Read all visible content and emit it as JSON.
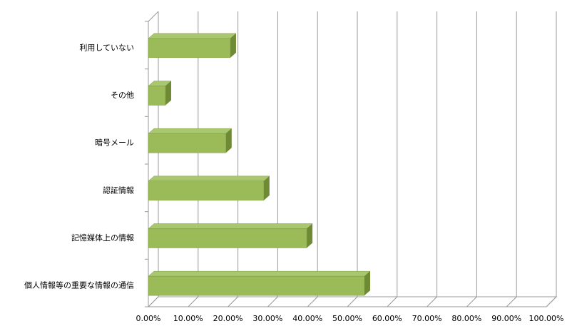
{
  "chart_data": {
    "type": "bar3d_horizontal",
    "categories": [
      "利用していない",
      "その他",
      "暗号メール",
      "認証情報",
      "記憶媒体上の情報",
      "個人情報等の重要な情報の通信"
    ],
    "values": [
      20.6,
      4.3,
      19.5,
      29.0,
      39.8,
      54.3
    ],
    "color": "#9bbb59",
    "xlim": [
      0,
      100
    ],
    "xticks": [
      {
        "value": 0,
        "label": "0.00%"
      },
      {
        "value": 10,
        "label": "10.00%"
      },
      {
        "value": 20,
        "label": "20.00%"
      },
      {
        "value": 30,
        "label": "30.00%"
      },
      {
        "value": 40,
        "label": "40.00%"
      },
      {
        "value": 50,
        "label": "50.00%"
      },
      {
        "value": 60,
        "label": "60.00%"
      },
      {
        "value": 70,
        "label": "70.00%"
      },
      {
        "value": 80,
        "label": "80.00%"
      },
      {
        "value": 90,
        "label": "90.00%"
      },
      {
        "value": 100,
        "label": "100.00%"
      }
    ],
    "grid": true
  }
}
